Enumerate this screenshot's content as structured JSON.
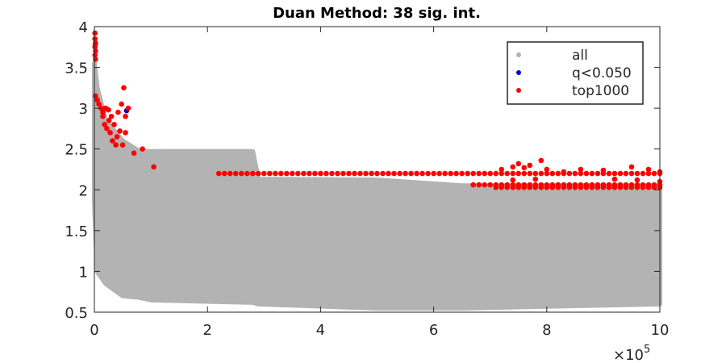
{
  "chart_data": {
    "type": "scatter",
    "title": "Duan Method: 38 sig. int.",
    "xlim": [
      0,
      1000000
    ],
    "xticks": [
      {
        "value": 0,
        "label": "0"
      },
      {
        "value": 200000,
        "label": "2"
      },
      {
        "value": 400000,
        "label": "4"
      },
      {
        "value": 600000,
        "label": "6"
      },
      {
        "value": 800000,
        "label": "8"
      },
      {
        "value": 1000000,
        "label": "10"
      }
    ],
    "x_multiplier": {
      "base": "×10",
      "exponent": "5"
    },
    "ylim": [
      0.5,
      4
    ],
    "yticks": [
      0.5,
      1,
      1.5,
      2,
      2.5,
      3,
      3.5,
      4
    ],
    "grid": false,
    "legend": "top-right",
    "series": [
      {
        "name": "all",
        "color": "#b3b3b3",
        "x": [
          0,
          5000,
          20000,
          50000,
          80000,
          100000,
          280000,
          290000,
          500000,
          650000,
          1000000
        ],
        "upper": [
          3.55,
          3.25,
          2.85,
          2.6,
          2.47,
          2.47,
          2.47,
          2.13,
          2.12,
          2.05,
          2.05
        ],
        "lower": [
          1.85,
          1.0,
          0.85,
          0.7,
          0.68,
          0.65,
          0.62,
          0.6,
          0.55,
          0.55,
          0.6
        ]
      },
      {
        "name": "q<0.050",
        "color": "#0000cc",
        "x": [
          57000
        ],
        "values": [
          2.97
        ]
      },
      {
        "name": "top1000",
        "color": "#ff0000",
        "x": [
          1000,
          1000,
          2000,
          1000,
          2000,
          1000,
          2000,
          1500,
          2000,
          5000,
          8000,
          12000,
          15000,
          20000,
          25000,
          30000,
          18000,
          22000,
          28000,
          35000,
          40000,
          45000,
          48000,
          52000,
          55000,
          50000,
          38000,
          60000,
          55000,
          42000,
          32000,
          70000,
          85000,
          105000,
          15000,
          26000,
          220000,
          230000,
          240000,
          250000,
          260000,
          270000,
          280000,
          290000,
          300000,
          310000,
          320000,
          330000,
          340000,
          350000,
          360000,
          370000,
          380000,
          390000,
          400000,
          410000,
          420000,
          430000,
          440000,
          450000,
          460000,
          470000,
          480000,
          490000,
          500000,
          510000,
          520000,
          530000,
          540000,
          550000,
          560000,
          570000,
          580000,
          590000,
          600000,
          610000,
          620000,
          630000,
          640000,
          650000,
          660000,
          670000,
          680000,
          690000,
          700000,
          710000,
          720000,
          730000,
          740000,
          750000,
          760000,
          770000,
          780000,
          790000,
          800000,
          810000,
          820000,
          830000,
          840000,
          850000,
          860000,
          870000,
          880000,
          890000,
          900000,
          910000,
          920000,
          930000,
          940000,
          950000,
          960000,
          970000,
          980000,
          990000,
          1000000,
          670000,
          680000,
          690000,
          700000,
          710000,
          720000,
          730000,
          740000,
          750000,
          760000,
          770000,
          780000,
          790000,
          800000,
          810000,
          820000,
          830000,
          840000,
          850000,
          860000,
          870000,
          880000,
          890000,
          900000,
          910000,
          920000,
          930000,
          940000,
          950000,
          960000,
          970000,
          980000,
          990000,
          1000000,
          710000,
          720000,
          730000,
          740000,
          750000,
          760000,
          770000,
          780000,
          790000,
          800000,
          810000,
          820000,
          830000,
          840000,
          850000,
          860000,
          870000,
          880000,
          890000,
          900000,
          910000,
          920000,
          930000,
          940000,
          950000,
          960000,
          970000,
          980000,
          990000,
          1000000,
          720000,
          740000,
          750000,
          760000,
          770000,
          790000,
          800000,
          830000,
          860000,
          900000,
          950000,
          980000,
          1000000,
          920000,
          960000,
          740000,
          780000,
          1000000
        ],
        "values": [
          3.92,
          3.85,
          3.8,
          3.75,
          3.7,
          3.65,
          3.6,
          3.78,
          3.15,
          3.1,
          3.05,
          3.0,
          2.95,
          3.0,
          2.98,
          2.9,
          2.8,
          2.75,
          2.7,
          2.8,
          2.65,
          2.72,
          3.05,
          3.25,
          2.9,
          2.55,
          2.55,
          3.0,
          2.7,
          2.95,
          2.6,
          2.45,
          2.5,
          2.28,
          2.9,
          2.85,
          2.2,
          2.2,
          2.2,
          2.2,
          2.2,
          2.2,
          2.2,
          2.2,
          2.2,
          2.2,
          2.2,
          2.2,
          2.2,
          2.2,
          2.2,
          2.2,
          2.2,
          2.2,
          2.2,
          2.2,
          2.2,
          2.2,
          2.2,
          2.2,
          2.2,
          2.2,
          2.2,
          2.2,
          2.2,
          2.2,
          2.2,
          2.2,
          2.2,
          2.2,
          2.2,
          2.2,
          2.2,
          2.2,
          2.2,
          2.2,
          2.2,
          2.2,
          2.2,
          2.2,
          2.2,
          2.2,
          2.2,
          2.2,
          2.2,
          2.2,
          2.2,
          2.2,
          2.2,
          2.2,
          2.2,
          2.2,
          2.2,
          2.2,
          2.2,
          2.2,
          2.2,
          2.2,
          2.2,
          2.2,
          2.2,
          2.2,
          2.2,
          2.2,
          2.2,
          2.2,
          2.2,
          2.2,
          2.2,
          2.2,
          2.2,
          2.2,
          2.2,
          2.2,
          2.2,
          2.06,
          2.06,
          2.06,
          2.06,
          2.06,
          2.06,
          2.06,
          2.06,
          2.06,
          2.06,
          2.06,
          2.06,
          2.06,
          2.06,
          2.06,
          2.06,
          2.06,
          2.06,
          2.06,
          2.06,
          2.06,
          2.06,
          2.06,
          2.06,
          2.06,
          2.06,
          2.06,
          2.06,
          2.06,
          2.06,
          2.06,
          2.06,
          2.06,
          2.06,
          2.03,
          2.03,
          2.03,
          2.03,
          2.03,
          2.03,
          2.03,
          2.03,
          2.03,
          2.03,
          2.03,
          2.03,
          2.03,
          2.03,
          2.03,
          2.03,
          2.03,
          2.03,
          2.03,
          2.03,
          2.03,
          2.03,
          2.03,
          2.03,
          2.03,
          2.03,
          2.03,
          2.03,
          2.03,
          2.03,
          2.25,
          2.28,
          2.32,
          2.27,
          2.3,
          2.36,
          2.25,
          2.22,
          2.25,
          2.24,
          2.28,
          2.25,
          2.22,
          2.13,
          2.12,
          2.12,
          2.13,
          2.1
        ]
      }
    ]
  }
}
